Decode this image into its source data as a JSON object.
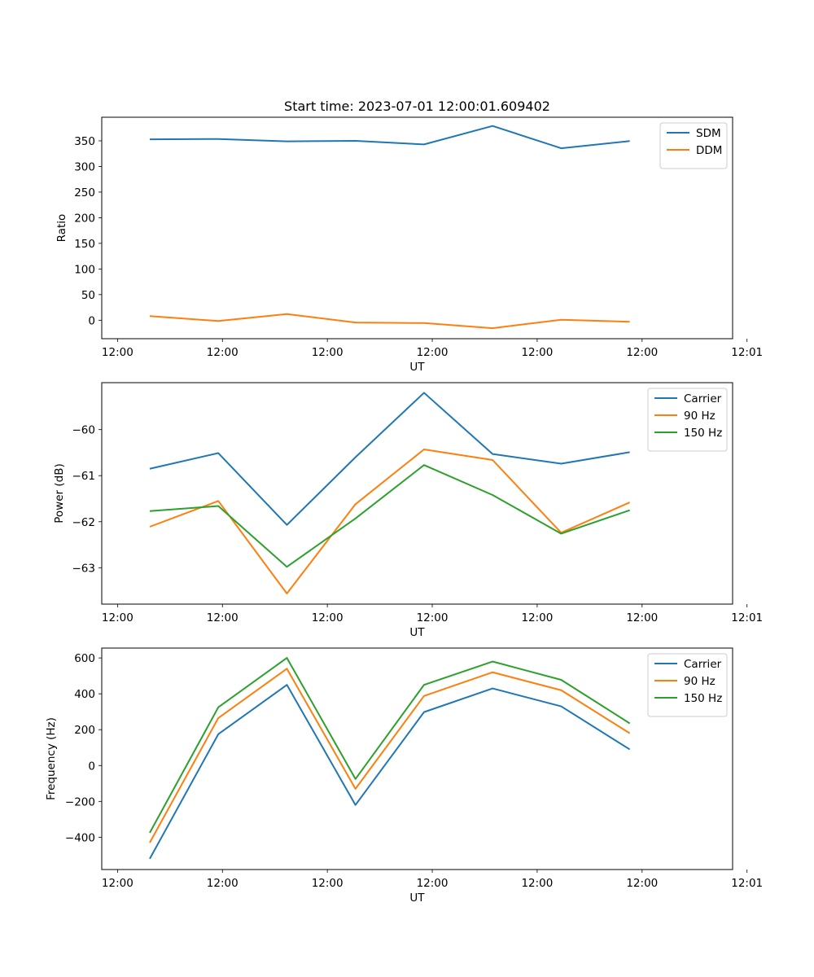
{
  "chart_data": [
    {
      "type": "line",
      "title": "Start time: 2023-07-01 12:00:01.609402",
      "xlabel": "UT",
      "ylabel": "Ratio",
      "xlim": [
        -0.7,
        8.5
      ],
      "x": [
        0,
        1,
        2,
        3,
        4,
        5,
        6,
        7
      ],
      "x_ticks": [
        -0.47,
        1.06,
        2.59,
        4.12,
        5.65,
        7.18,
        8.71
      ],
      "x_tick_labels": [
        "12:00",
        "12:00",
        "12:00",
        "12:00",
        "12:00",
        "12:00",
        "12:01"
      ],
      "ylim": [
        -36,
        396
      ],
      "y_ticks": [
        0,
        50,
        100,
        150,
        200,
        250,
        300,
        350
      ],
      "legend_position": "top-right",
      "series": [
        {
          "name": "SDM",
          "color": "#1f77b4",
          "values": [
            353,
            353.5,
            349,
            350,
            343,
            379,
            335.5,
            349.5
          ]
        },
        {
          "name": "DDM",
          "color": "#ff7f0e",
          "values": [
            8,
            -1.5,
            12,
            -4.5,
            -5.5,
            -15.5,
            1,
            -3
          ]
        }
      ]
    },
    {
      "type": "line",
      "title": "",
      "xlabel": "UT",
      "ylabel": "Power (dB)",
      "xlim": [
        -0.7,
        8.5
      ],
      "x": [
        0,
        1,
        2,
        3,
        4,
        5,
        6,
        7
      ],
      "x_ticks": [
        -0.47,
        1.06,
        2.59,
        4.12,
        5.65,
        7.18,
        8.71
      ],
      "x_tick_labels": [
        "12:00",
        "12:00",
        "12:00",
        "12:00",
        "12:00",
        "12:00",
        "12:01"
      ],
      "ylim": [
        -63.79,
        -58.98
      ],
      "y_ticks": [
        -63,
        -62,
        -61,
        -60
      ],
      "legend_position": "top-right",
      "series": [
        {
          "name": "Carrier",
          "color": "#1f77b4",
          "values": [
            -60.85,
            -60.51,
            -62.07,
            -60.6,
            -59.2,
            -60.53,
            -60.74,
            -60.49
          ]
        },
        {
          "name": "90 Hz",
          "color": "#ff7f0e",
          "values": [
            -62.11,
            -61.55,
            -63.56,
            -61.62,
            -60.43,
            -60.66,
            -62.24,
            -61.58
          ]
        },
        {
          "name": "150 Hz",
          "color": "#2ca02c",
          "values": [
            -61.77,
            -61.66,
            -62.98,
            -61.93,
            -60.77,
            -61.42,
            -62.26,
            -61.75
          ]
        }
      ]
    },
    {
      "type": "line",
      "title": "",
      "xlabel": "UT",
      "ylabel": "Frequency (Hz)",
      "xlim": [
        -0.7,
        8.5
      ],
      "x": [
        0,
        1,
        2,
        3,
        4,
        5,
        6,
        7
      ],
      "x_ticks": [
        -0.47,
        1.06,
        2.59,
        4.12,
        5.65,
        7.18,
        8.71
      ],
      "x_tick_labels": [
        "12:00",
        "12:00",
        "12:00",
        "12:00",
        "12:00",
        "12:00",
        "12:01"
      ],
      "ylim": [
        -580,
        655
      ],
      "y_ticks": [
        -400,
        -200,
        0,
        200,
        400,
        600
      ],
      "legend_position": "top-right",
      "series": [
        {
          "name": "Carrier",
          "color": "#1f77b4",
          "values": [
            -520,
            175,
            450,
            -220,
            298,
            430,
            330,
            90
          ]
        },
        {
          "name": "90 Hz",
          "color": "#ff7f0e",
          "values": [
            -430,
            265,
            540,
            -130,
            388,
            520,
            420,
            180
          ]
        },
        {
          "name": "150 Hz",
          "color": "#2ca02c",
          "values": [
            -375,
            325,
            600,
            -75,
            450,
            580,
            478,
            235
          ]
        }
      ]
    }
  ]
}
